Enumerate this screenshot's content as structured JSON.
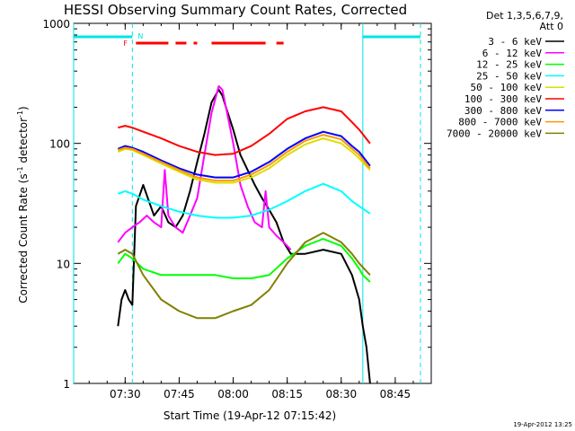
{
  "chart_data": {
    "type": "line",
    "title": "HESSI Observing Summary Count Rates, Corrected",
    "xlabel": "Start Time (19-Apr-12 07:15:42)",
    "ylabel": "Corrected Count Rate (s⁻¹ detector⁻¹)",
    "ylabel_main": "Corrected Count Rate (s",
    "ylabel_mid": " detector",
    "ylabel_end": ")",
    "ylabel_sup": "-1",
    "y_scale": "log",
    "ylim": [
      1,
      1000
    ],
    "xlim": [
      "07:15:42",
      "08:55:00"
    ],
    "x_ticks": [
      "07:30",
      "07:45",
      "08:00",
      "08:15",
      "08:30",
      "08:45"
    ],
    "y_ticks": [
      "1",
      "10",
      "100",
      "1000"
    ],
    "grid": false,
    "legend_header": [
      "Det 1,3,5,6,7,9,",
      "Att 0"
    ],
    "legend_placement": "right",
    "footer": "19-Apr-2012 13:25",
    "flags": {
      "N_label": "N",
      "F_label": "F",
      "night_color": "#00e5e5",
      "flare_color": "#ff0000",
      "night_intervals": [
        [
          "07:15:42",
          "07:32:00"
        ],
        [
          "08:36:00",
          "08:52:00"
        ]
      ],
      "flare_intervals": [
        [
          "07:33:00",
          "07:42:00"
        ],
        [
          "07:44:00",
          "07:47:00"
        ],
        [
          "07:49:00",
          "07:50:00"
        ],
        [
          "07:54:00",
          "08:09:00"
        ],
        [
          "08:12:00",
          "08:14:00"
        ]
      ]
    },
    "vertical_lines": {
      "solid": [
        "07:15:42",
        "08:36:00"
      ],
      "dashed": [
        "07:32:00",
        "08:52:00"
      ]
    },
    "series": [
      {
        "name": "3 - 6 keV",
        "color": "#000000",
        "x": [
          "07:28",
          "07:29",
          "07:30",
          "07:31",
          "07:32",
          "07:33",
          "07:35",
          "07:38",
          "07:40",
          "07:42",
          "07:44",
          "07:46",
          "07:48",
          "07:50",
          "07:52",
          "07:54",
          "07:56",
          "07:57",
          "07:58",
          "08:00",
          "08:02",
          "08:04",
          "08:06",
          "08:08",
          "08:10",
          "08:12",
          "08:14",
          "08:16",
          "08:20",
          "08:25",
          "08:30",
          "08:33",
          "08:35",
          "08:36",
          "08:37",
          "08:38"
        ],
        "y": [
          3,
          5,
          6,
          5,
          4.5,
          30,
          45,
          25,
          30,
          22,
          20,
          25,
          40,
          70,
          120,
          220,
          280,
          250,
          200,
          130,
          80,
          60,
          45,
          35,
          28,
          22,
          15,
          12,
          12,
          13,
          12,
          8,
          5,
          3,
          2,
          1
        ]
      },
      {
        "name": "6 - 12 keV",
        "color": "#ff00ff",
        "x": [
          "07:28",
          "07:30",
          "07:32",
          "07:34",
          "07:36",
          "07:38",
          "07:40",
          "07:41",
          "07:42",
          "07:44",
          "07:46",
          "07:48",
          "07:50",
          "07:52",
          "07:54",
          "07:56",
          "07:57",
          "07:58",
          "08:00",
          "08:02",
          "08:04",
          "08:06",
          "08:08",
          "08:09",
          "08:10",
          "08:12",
          "08:14",
          "08:16"
        ],
        "y": [
          15,
          18,
          20,
          22,
          25,
          22,
          20,
          60,
          25,
          20,
          18,
          25,
          35,
          80,
          180,
          300,
          280,
          200,
          100,
          45,
          30,
          22,
          20,
          40,
          20,
          17,
          15,
          13
        ]
      },
      {
        "name": "12 - 25 keV",
        "color": "#00ff00",
        "x": [
          "07:28",
          "07:30",
          "07:32",
          "07:35",
          "07:40",
          "07:45",
          "07:50",
          "07:55",
          "08:00",
          "08:05",
          "08:10",
          "08:15",
          "08:20",
          "08:25",
          "08:30",
          "08:33",
          "08:35",
          "08:36",
          "08:38"
        ],
        "y": [
          10,
          12,
          11,
          9,
          8,
          8,
          8,
          8,
          7.5,
          7.5,
          8,
          11,
          14,
          16,
          14,
          11,
          9,
          8,
          7
        ]
      },
      {
        "name": "25 - 50 keV",
        "color": "#00ffff",
        "x": [
          "07:28",
          "07:30",
          "07:32",
          "07:35",
          "07:40",
          "07:45",
          "07:50",
          "07:55",
          "08:00",
          "08:05",
          "08:10",
          "08:15",
          "08:20",
          "08:25",
          "08:30",
          "08:33",
          "08:35",
          "08:38"
        ],
        "y": [
          38,
          40,
          38,
          34,
          30,
          27,
          25,
          24,
          24,
          25,
          28,
          33,
          40,
          46,
          40,
          33,
          30,
          26
        ]
      },
      {
        "name": "50 - 100 keV",
        "color": "#dddd00",
        "x": [
          "07:28",
          "07:30",
          "07:32",
          "07:35",
          "07:40",
          "07:45",
          "07:50",
          "07:55",
          "08:00",
          "08:05",
          "08:10",
          "08:15",
          "08:20",
          "08:25",
          "08:30",
          "08:33",
          "08:35",
          "08:38"
        ],
        "y": [
          85,
          90,
          88,
          80,
          68,
          58,
          50,
          47,
          47,
          52,
          62,
          80,
          98,
          110,
          100,
          85,
          75,
          60
        ]
      },
      {
        "name": "100 - 300 keV",
        "color": "#ff0000",
        "x": [
          "07:28",
          "07:30",
          "07:32",
          "07:35",
          "07:40",
          "07:45",
          "07:50",
          "07:55",
          "08:00",
          "08:05",
          "08:10",
          "08:15",
          "08:20",
          "08:25",
          "08:30",
          "08:33",
          "08:35",
          "08:38"
        ],
        "y": [
          135,
          140,
          135,
          125,
          110,
          95,
          85,
          80,
          82,
          95,
          120,
          160,
          185,
          200,
          185,
          150,
          130,
          100
        ]
      },
      {
        "name": "300 - 800 keV",
        "color": "#0000ff",
        "x": [
          "07:28",
          "07:30",
          "07:32",
          "07:35",
          "07:40",
          "07:45",
          "07:50",
          "07:55",
          "08:00",
          "08:05",
          "08:10",
          "08:15",
          "08:20",
          "08:25",
          "08:30",
          "08:33",
          "08:35",
          "08:38"
        ],
        "y": [
          90,
          95,
          92,
          85,
          72,
          62,
          55,
          52,
          52,
          58,
          70,
          90,
          110,
          125,
          115,
          95,
          85,
          65
        ]
      },
      {
        "name": "800 - 7000 keV",
        "color": "#ff9900",
        "x": [
          "07:28",
          "07:30",
          "07:32",
          "07:35",
          "07:40",
          "07:45",
          "07:50",
          "07:55",
          "08:00",
          "08:05",
          "08:10",
          "08:15",
          "08:20",
          "08:25",
          "08:30",
          "08:33",
          "08:35",
          "08:38"
        ],
        "y": [
          88,
          92,
          90,
          82,
          70,
          60,
          52,
          49,
          49,
          55,
          66,
          85,
          105,
          118,
          108,
          90,
          80,
          62
        ]
      },
      {
        "name": "7000 - 20000 keV",
        "color": "#808000",
        "x": [
          "07:28",
          "07:30",
          "07:32",
          "07:35",
          "07:40",
          "07:45",
          "07:50",
          "07:55",
          "08:00",
          "08:05",
          "08:10",
          "08:15",
          "08:20",
          "08:25",
          "08:30",
          "08:33",
          "08:35",
          "08:38"
        ],
        "y": [
          12,
          13,
          12,
          8,
          5,
          4,
          3.5,
          3.5,
          4,
          4.5,
          6,
          10,
          15,
          18,
          15,
          12,
          10,
          8
        ]
      }
    ]
  }
}
